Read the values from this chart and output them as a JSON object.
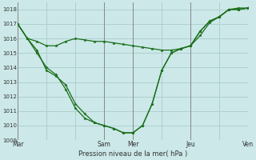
{
  "background_color": "#cce8e8",
  "grid_color": "#aacccc",
  "line_color": "#1a6e1a",
  "marker_color": "#1a6e1a",
  "xlabel": "Pression niveau de la mer( hPa )",
  "ylim": [
    1009,
    1018.5
  ],
  "yticks": [
    1009,
    1010,
    1011,
    1012,
    1013,
    1014,
    1015,
    1016,
    1017,
    1018
  ],
  "xlim": [
    0,
    192
  ],
  "day_labels": [
    "Mar",
    "Sam",
    "Mer",
    "Jeu",
    "Ven"
  ],
  "day_positions": [
    0,
    72,
    96,
    144,
    192
  ],
  "series1_x": [
    0,
    8,
    16,
    24,
    32,
    40,
    48,
    56,
    64,
    72,
    80,
    88,
    96,
    104,
    112,
    120,
    128,
    136,
    144,
    152,
    160,
    168,
    176,
    184,
    192
  ],
  "series1_y": [
    1017,
    1016,
    1015.8,
    1015.5,
    1015.5,
    1015.8,
    1016.0,
    1015.9,
    1015.8,
    1015.8,
    1015.7,
    1015.6,
    1015.5,
    1015.4,
    1015.3,
    1015.2,
    1015.2,
    1015.3,
    1015.5,
    1016.2,
    1017.1,
    1017.5,
    1018.0,
    1018.1,
    1018.1
  ],
  "series2_x": [
    0,
    8,
    16,
    24,
    32,
    40,
    48,
    56,
    64,
    72,
    80,
    88,
    96,
    104,
    112,
    120,
    128,
    136,
    144,
    152,
    160,
    168,
    176,
    184,
    192
  ],
  "series2_y": [
    1017,
    1016,
    1015.2,
    1013.8,
    1013.4,
    1012.8,
    1011.5,
    1010.8,
    1010.2,
    1010.0,
    1009.8,
    1009.5,
    1009.5,
    1010.0,
    1011.5,
    1013.8,
    1015.0,
    1015.3,
    1015.5,
    1016.5,
    1017.2,
    1017.5,
    1018.0,
    1018.0,
    1018.1
  ],
  "series3_x": [
    0,
    8,
    16,
    24,
    32,
    40,
    48,
    56,
    64,
    72,
    80,
    88,
    96,
    104,
    112,
    120,
    128,
    136,
    144,
    152,
    160,
    168,
    176,
    184,
    192
  ],
  "series3_y": [
    1017,
    1016,
    1015.0,
    1014.0,
    1013.5,
    1012.5,
    1011.2,
    1010.5,
    1010.2,
    1010.0,
    1009.8,
    1009.5,
    1009.5,
    1010.0,
    1011.5,
    1013.8,
    1015.0,
    1015.3,
    1015.5,
    1016.5,
    1017.2,
    1017.5,
    1018.0,
    1018.0,
    1018.1
  ]
}
